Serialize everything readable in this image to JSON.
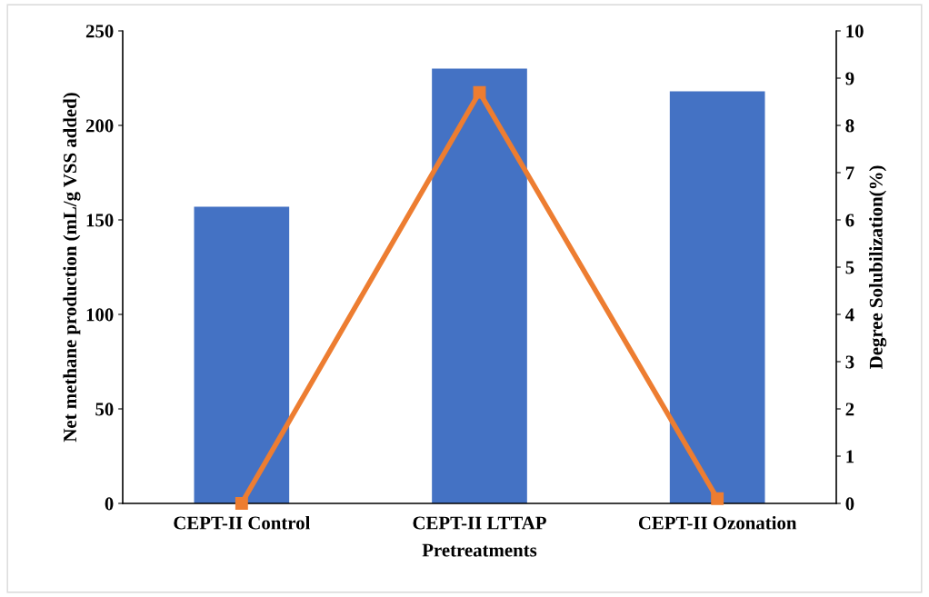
{
  "chart_data": {
    "type": "bar",
    "xlabel": "Pretreatments",
    "ylabel": "Net methane production (mL/g VSS added)",
    "y2label": "Degree Solubilization(%)",
    "categories": [
      "CEPT-II Control",
      "CEPT-II LTTAP",
      "CEPT-II Ozonation"
    ],
    "series": [
      {
        "color": "#4472c4",
        "values": [
          157,
          230,
          218
        ]
      },
      {
        "type": "line",
        "axis": "y2",
        "color": "#ed7d31",
        "values": [
          0,
          8.7,
          0.1
        ],
        "marker": "square",
        "line_style": "solid"
      }
    ],
    "ylim": [
      0,
      250
    ],
    "yticks": [
      0,
      50,
      100,
      150,
      200,
      250
    ],
    "y2lim": [
      0,
      10
    ],
    "y2ticks": [
      0,
      1,
      2,
      3,
      4,
      5,
      6,
      7,
      8,
      9,
      10
    ],
    "grid": false
  }
}
